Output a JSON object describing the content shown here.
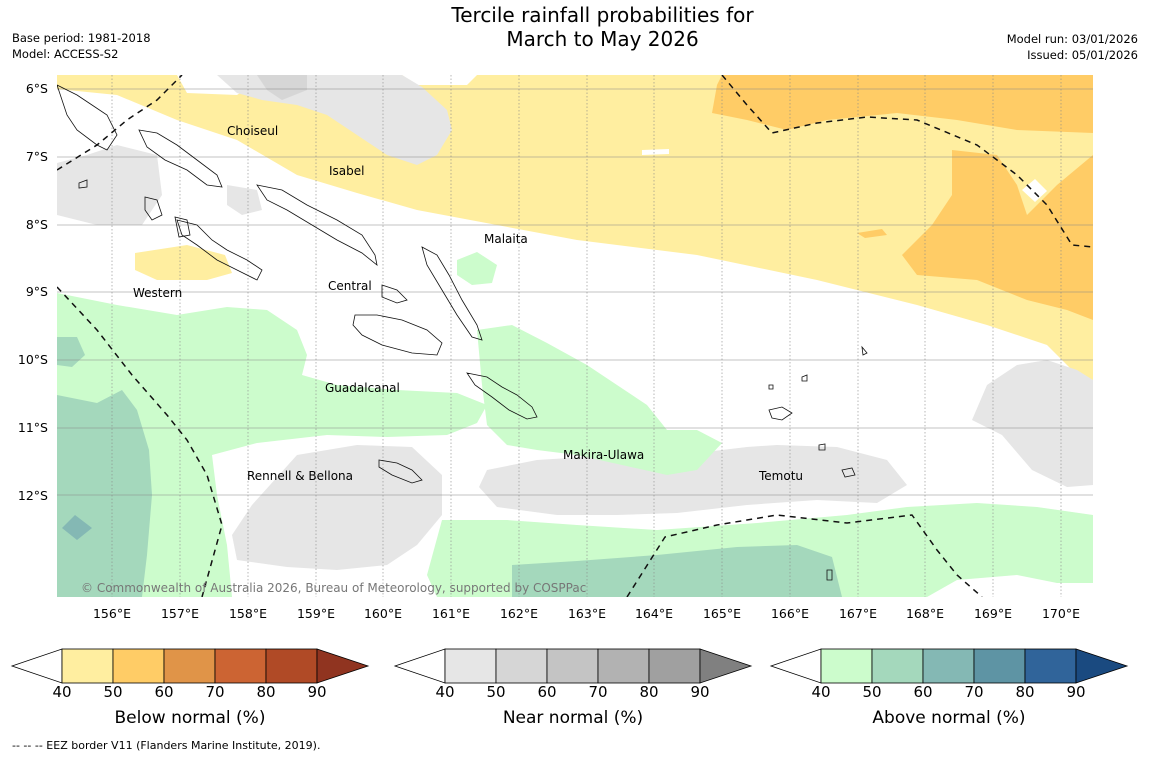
{
  "title": {
    "line1": "Tercile rainfall probabilities for",
    "line2": "March to May 2026"
  },
  "meta": {
    "base_period": "Base period: 1981-2018",
    "model": "Model: ACCESS-S2",
    "model_run": "Model run: 03/01/2026",
    "issued": "Issued: 05/01/2026"
  },
  "latitudes": [
    "6°S",
    "7°S",
    "8°S",
    "9°S",
    "10°S",
    "11°S",
    "12°S"
  ],
  "longitudes": [
    "156°E",
    "157°E",
    "158°E",
    "159°E",
    "160°E",
    "161°E",
    "162°E",
    "163°E",
    "164°E",
    "165°E",
    "166°E",
    "167°E",
    "168°E",
    "169°E",
    "170°E"
  ],
  "places": {
    "choiseul": "Choiseul",
    "isabel": "Isabel",
    "malaita": "Malaita",
    "central": "Central",
    "western": "Western",
    "guadalcanal": "Guadalcanal",
    "makira": "Makira-Ulawa",
    "rennell": "Rennell & Bellona",
    "temotu": "Temotu"
  },
  "copyright": "© Commonwealth of Australia 2026, Bureau of Meteorology, supported by COSPPac",
  "colors": {
    "below": [
      "#ffeea0",
      "#ffcc66",
      "#e09448",
      "#cc6433",
      "#b04a26",
      "#903420"
    ],
    "near": [
      "#e6e6e6",
      "#d6d6d6",
      "#c4c4c4",
      "#b2b2b2",
      "#a0a0a0",
      "#808080"
    ],
    "above": [
      "#ccfccc",
      "#a4d8bc",
      "#84b8b4",
      "#5e94a4",
      "#30649a",
      "#1a4a80"
    ]
  },
  "colorbars": {
    "ticks": [
      "40",
      "50",
      "60",
      "70",
      "80",
      "90"
    ],
    "below_label": "Below normal (%)",
    "near_label": "Near normal (%)",
    "above_label": "Above normal (%)"
  },
  "footnote": "--  --  -- EEZ border V11 (Flanders Marine Institute, 2019)."
}
